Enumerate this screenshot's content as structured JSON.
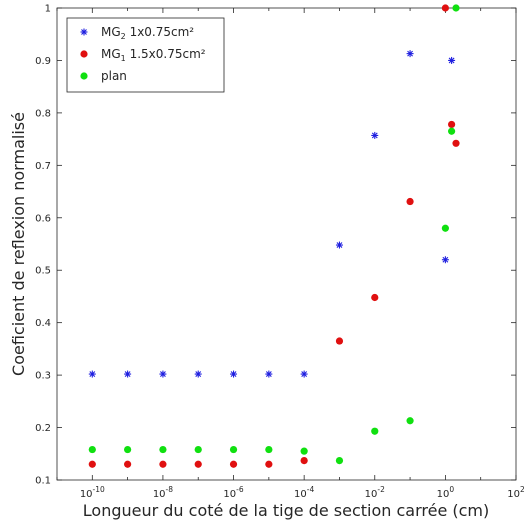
{
  "chart_data": {
    "type": "scatter",
    "xlabel": "Longueur du coté de la tige de section carrée (cm)",
    "ylabel": "Coeficient de reflexion normalisé",
    "xscale": "log",
    "xlim": [
      1e-11,
      100
    ],
    "ylim": [
      0.1,
      1.0
    ],
    "yticks": [
      "0.1",
      "0.2",
      "0.3",
      "0.4",
      "0.5",
      "0.6",
      "0.7",
      "0.8",
      "0.9",
      "1"
    ],
    "xticks": [
      {
        "base": "10",
        "exp": "-10",
        "value": 1e-10
      },
      {
        "base": "10",
        "exp": "-8",
        "value": 1e-08
      },
      {
        "base": "10",
        "exp": "-6",
        "value": 1e-06
      },
      {
        "base": "10",
        "exp": "-4",
        "value": 0.0001
      },
      {
        "base": "10",
        "exp": "-2",
        "value": 0.01
      },
      {
        "base": "10",
        "exp": "0",
        "value": 1
      },
      {
        "base": "10",
        "exp": "2",
        "value": 100
      }
    ],
    "grid": false,
    "legend_position": "top-left",
    "series": [
      {
        "name": "MG2 1x0.75cm²",
        "legend_main": "MG",
        "legend_sub": "2",
        "legend_rest": " 1x0.75cm²",
        "marker": "star",
        "color": "#1f1fe0",
        "x": [
          1e-10,
          1e-09,
          1e-08,
          1e-07,
          1e-06,
          1e-05,
          0.0001,
          0.001,
          0.01,
          0.1,
          1,
          1.5
        ],
        "y": [
          0.302,
          0.302,
          0.302,
          0.302,
          0.302,
          0.302,
          0.302,
          0.548,
          0.757,
          0.913,
          0.52,
          0.9
        ]
      },
      {
        "name": "MG1 1.5x0.75cm²",
        "legend_main": "MG",
        "legend_sub": "1",
        "legend_rest": " 1.5x0.75cm²",
        "marker": "circle",
        "color": "#e01010",
        "x": [
          1e-10,
          1e-09,
          1e-08,
          1e-07,
          1e-06,
          1e-05,
          0.0001,
          0.001,
          0.01,
          0.1,
          1,
          1.5,
          2
        ],
        "y": [
          0.13,
          0.13,
          0.13,
          0.13,
          0.13,
          0.13,
          0.137,
          0.365,
          0.448,
          0.631,
          1.0,
          0.778,
          0.742
        ]
      },
      {
        "name": "plan",
        "legend_main": "plan",
        "legend_sub": "",
        "legend_rest": "",
        "marker": "circle",
        "color": "#10e010",
        "x": [
          1e-10,
          1e-09,
          1e-08,
          1e-07,
          1e-06,
          1e-05,
          0.0001,
          0.001,
          0.01,
          0.1,
          1,
          1.5,
          2
        ],
        "y": [
          0.158,
          0.158,
          0.158,
          0.158,
          0.158,
          0.158,
          0.155,
          0.137,
          0.193,
          0.213,
          0.58,
          0.765,
          1.0
        ]
      }
    ]
  }
}
